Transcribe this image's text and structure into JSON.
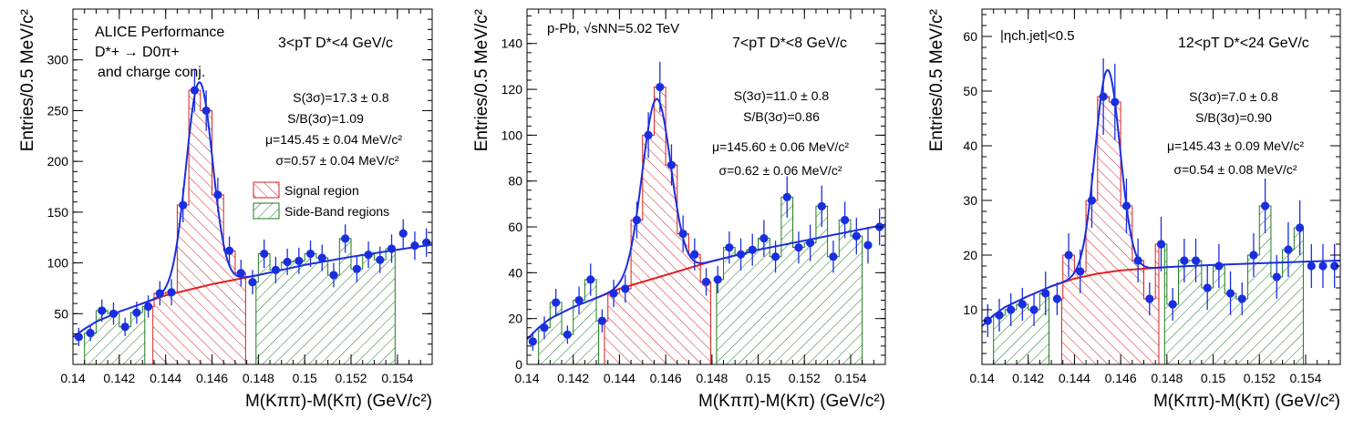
{
  "chart_data": [
    {
      "type": "histogram",
      "xlabel": "M(Kππ)-M(Kπ) (GeV/c²)",
      "ylabel": "Entries/0.5 MeV/c²",
      "xlim": [
        0.14,
        0.1555
      ],
      "ylim": [
        0,
        350
      ],
      "xticks": [
        0.14,
        0.142,
        0.144,
        0.146,
        0.148,
        0.15,
        0.152,
        0.154
      ],
      "xtick_labels": [
        "0.14",
        "0.142",
        "0.144",
        "0.146",
        "0.148",
        "0.15",
        "0.152",
        "0.154"
      ],
      "yticks": [
        50,
        100,
        150,
        200,
        250,
        300
      ],
      "ytick_labels": [
        "50",
        "100",
        "150",
        "200",
        "250",
        "300"
      ],
      "annotations": {
        "line1": "ALICE Performance",
        "line2": "D*+ → D0π+",
        "line3": "and charge conj.",
        "pt_range": "3<pT D*<4 GeV/c",
        "signal": "S(3σ)=17.3 ± 0.8",
        "sb": "S/B(3σ)=1.09",
        "mu": "μ=145.45 ± 0.04 MeV/c²",
        "sigma": "σ=0.57 ± 0.04 MeV/c²"
      },
      "legend": {
        "placement": "right-middle",
        "entries": [
          "Signal region",
          "Side-Band regions"
        ]
      },
      "x": [
        0.14025,
        0.14075,
        0.14125,
        0.14175,
        0.14225,
        0.14275,
        0.14325,
        0.14375,
        0.14425,
        0.14475,
        0.14525,
        0.14575,
        0.14625,
        0.14675,
        0.14725,
        0.14775,
        0.14825,
        0.14875,
        0.14925,
        0.14975,
        0.15025,
        0.15075,
        0.15125,
        0.15175,
        0.15225,
        0.15275,
        0.15325,
        0.15375,
        0.15425,
        0.15475,
        0.15525
      ],
      "y": [
        27,
        31,
        53,
        50,
        37,
        51,
        57,
        70,
        71,
        157,
        270,
        250,
        167,
        112,
        90,
        81,
        109,
        93,
        101,
        102,
        109,
        105,
        88,
        124,
        94,
        108,
        103,
        114,
        129,
        117,
        120
      ],
      "yerr": [
        9,
        8,
        11,
        11,
        9,
        11,
        11,
        12,
        13,
        17,
        21,
        20,
        17,
        14,
        13,
        12,
        14,
        13,
        13,
        13,
        13,
        13,
        12,
        14,
        13,
        13,
        13,
        14,
        14,
        14,
        14
      ],
      "regions": {
        "signal": [
          0.14345,
          0.14745
        ],
        "sideband_left": [
          0.1405,
          0.1431
        ],
        "sideband_right": [
          0.1479,
          0.1539
        ]
      },
      "fit_peak": {
        "mean": 0.14545,
        "sigma": 0.00057,
        "amplitude": 202
      },
      "fit_background": [
        [
          0.14,
          27
        ],
        [
          0.1405,
          35
        ],
        [
          0.141,
          42
        ],
        [
          0.142,
          52
        ],
        [
          0.143,
          60
        ],
        [
          0.144,
          68
        ],
        [
          0.146,
          79
        ],
        [
          0.148,
          88
        ],
        [
          0.15,
          98
        ],
        [
          0.152,
          106
        ],
        [
          0.154,
          113
        ],
        [
          0.1555,
          118
        ]
      ]
    },
    {
      "type": "histogram",
      "xlabel": "M(Kππ)-M(Kπ) (GeV/c²)",
      "ylabel": "Entries/0.5 MeV/c²",
      "xlim": [
        0.14,
        0.1555
      ],
      "ylim": [
        0,
        155
      ],
      "xticks": [
        0.14,
        0.142,
        0.144,
        0.146,
        0.148,
        0.15,
        0.152,
        0.154
      ],
      "xtick_labels": [
        "0.14",
        "0.142",
        "0.144",
        "0.146",
        "0.148",
        "0.15",
        "0.152",
        "0.154"
      ],
      "yticks": [
        0,
        20,
        40,
        60,
        80,
        100,
        120,
        140
      ],
      "ytick_labels": [
        "0",
        "20",
        "40",
        "60",
        "80",
        "100",
        "120",
        "140"
      ],
      "annotations": {
        "line1": "p-Pb, √sNN=5.02 TeV",
        "pt_range": "7<pT D*<8 GeV/c",
        "signal": "S(3σ)=11.0 ± 0.8",
        "sb": "S/B(3σ)=0.86",
        "mu": "μ=145.60 ± 0.06 MeV/c²",
        "sigma": "σ=0.62 ± 0.06 MeV/c²"
      },
      "x": [
        0.14025,
        0.14075,
        0.14125,
        0.14175,
        0.14225,
        0.14275,
        0.14325,
        0.14375,
        0.14425,
        0.14475,
        0.14525,
        0.14575,
        0.14625,
        0.14675,
        0.14725,
        0.14775,
        0.14825,
        0.14875,
        0.14925,
        0.14975,
        0.15025,
        0.15075,
        0.15125,
        0.15175,
        0.15225,
        0.15275,
        0.15325,
        0.15375,
        0.15425,
        0.15475,
        0.15525
      ],
      "y": [
        10,
        16,
        27,
        13,
        28,
        37,
        19,
        31,
        33,
        63,
        100,
        121,
        87,
        57,
        48,
        36,
        37,
        51,
        48,
        50,
        55,
        47,
        73,
        51,
        53,
        69,
        47,
        63,
        56,
        52,
        60
      ],
      "yerr": [
        4,
        5,
        6,
        4,
        6,
        7,
        5,
        6,
        6,
        8,
        10,
        11,
        9,
        8,
        7,
        6,
        6,
        7,
        7,
        7,
        8,
        7,
        9,
        7,
        8,
        9,
        7,
        8,
        8,
        8,
        8
      ],
      "regions": {
        "signal": [
          0.14335,
          0.14795
        ],
        "sideband_left": [
          0.1405,
          0.1431
        ],
        "sideband_right": [
          0.1482,
          0.1545
        ]
      },
      "fit_peak": {
        "mean": 0.1456,
        "sigma": 0.00062,
        "amplitude": 78
      },
      "fit_background": [
        [
          0.14,
          11
        ],
        [
          0.1405,
          16
        ],
        [
          0.141,
          20
        ],
        [
          0.142,
          25
        ],
        [
          0.143,
          29
        ],
        [
          0.144,
          33
        ],
        [
          0.146,
          39
        ],
        [
          0.148,
          45
        ],
        [
          0.15,
          50
        ],
        [
          0.152,
          54
        ],
        [
          0.154,
          58
        ],
        [
          0.1555,
          61
        ]
      ]
    },
    {
      "type": "histogram",
      "xlabel": "M(Kππ)-M(Kπ) (GeV/c²)",
      "ylabel": "Entries/0.5 MeV/c²",
      "xlim": [
        0.14,
        0.1555
      ],
      "ylim": [
        0,
        65
      ],
      "xticks": [
        0.14,
        0.142,
        0.144,
        0.146,
        0.148,
        0.15,
        0.152,
        0.154
      ],
      "xtick_labels": [
        "0.14",
        "0.142",
        "0.144",
        "0.146",
        "0.148",
        "0.15",
        "0.152",
        "0.154"
      ],
      "yticks": [
        10,
        20,
        30,
        40,
        50,
        60
      ],
      "ytick_labels": [
        "10",
        "20",
        "30",
        "40",
        "50",
        "60"
      ],
      "annotations": {
        "line1": "|ηch.jet|<0.5",
        "pt_range": "12<pT D*<24 GeV/c",
        "signal": "S(3σ)=7.0 ± 0.8",
        "sb": "S/B(3σ)=0.90",
        "mu": "μ=145.43 ± 0.09 MeV/c²",
        "sigma": "σ=0.54 ± 0.08 MeV/c²"
      },
      "x": [
        0.14025,
        0.14075,
        0.14125,
        0.14175,
        0.14225,
        0.14275,
        0.14325,
        0.14375,
        0.14425,
        0.14475,
        0.14525,
        0.14575,
        0.14625,
        0.14675,
        0.14725,
        0.14775,
        0.14825,
        0.14875,
        0.14925,
        0.14975,
        0.15025,
        0.15075,
        0.15125,
        0.15175,
        0.15225,
        0.15275,
        0.15325,
        0.15375,
        0.15425,
        0.15475,
        0.15525
      ],
      "y": [
        8,
        9,
        10,
        11,
        10,
        13,
        12,
        20,
        17,
        30,
        49,
        48,
        29,
        19,
        12,
        22,
        11,
        19,
        19,
        14,
        18,
        13,
        12,
        20,
        29,
        16,
        21,
        25,
        18,
        18,
        18
      ],
      "yerr": [
        3,
        3,
        3,
        3,
        3,
        4,
        3,
        4,
        4,
        5,
        7,
        7,
        5,
        4,
        3,
        5,
        3,
        4,
        4,
        4,
        4,
        4,
        3,
        4,
        5,
        4,
        5,
        5,
        4,
        4,
        4
      ],
      "regions": {
        "signal": [
          0.14345,
          0.14765
        ],
        "sideband_left": [
          0.1405,
          0.1429
        ],
        "sideband_right": [
          0.1479,
          0.1539
        ]
      },
      "fit_peak": {
        "mean": 0.14543,
        "sigma": 0.00054,
        "amplitude": 37
      },
      "fit_background": [
        [
          0.14,
          7
        ],
        [
          0.1405,
          9
        ],
        [
          0.141,
          10.5
        ],
        [
          0.142,
          12.5
        ],
        [
          0.143,
          14.3
        ],
        [
          0.144,
          15.7
        ],
        [
          0.145,
          16.6
        ],
        [
          0.146,
          17.2
        ],
        [
          0.148,
          17.8
        ],
        [
          0.15,
          18.2
        ],
        [
          0.152,
          18.5
        ],
        [
          0.154,
          18.8
        ],
        [
          0.1555,
          19
        ]
      ]
    }
  ]
}
